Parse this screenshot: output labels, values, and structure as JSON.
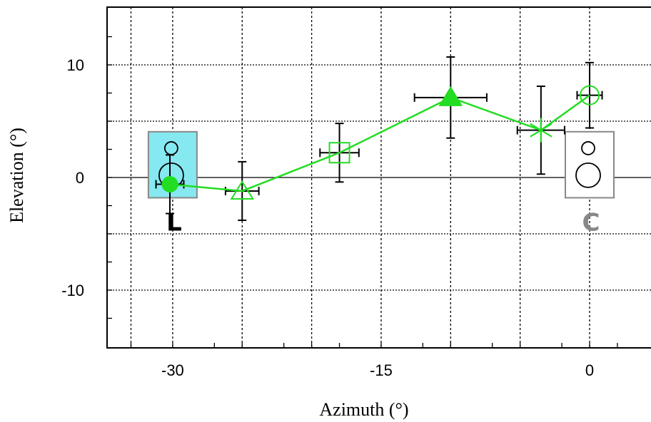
{
  "chart_data": {
    "type": "scatter",
    "xlabel": "Azimuth (°)",
    "ylabel": "Elevation (°)",
    "xlim": [
      -36,
      3
    ],
    "ylim": [
      -15,
      15
    ],
    "x_ticks": [
      -30,
      -15,
      0
    ],
    "x_tick_labels": [
      "-30",
      "-15",
      "0"
    ],
    "y_ticks": [
      10,
      0,
      -10
    ],
    "y_tick_labels": [
      "10",
      "0",
      "-10"
    ],
    "grid": true,
    "line_color": "#22dd22",
    "errorbar_color": "#000000",
    "series": [
      {
        "points": [
          {
            "x": -30.2,
            "y": -0.6,
            "x_err": 1.0,
            "y_err": 2.6,
            "marker": "filled-circle"
          },
          {
            "x": -25.0,
            "y": -1.2,
            "x_err": 1.2,
            "y_err": 2.6,
            "marker": "open-triangle"
          },
          {
            "x": -18.0,
            "y": 2.2,
            "x_err": 1.4,
            "y_err": 2.6,
            "marker": "open-square"
          },
          {
            "x": -10.0,
            "y": 7.1,
            "x_err": 2.6,
            "y_err": 3.6,
            "marker": "filled-triangle"
          },
          {
            "x": -3.5,
            "y": 4.2,
            "x_err": 1.7,
            "y_err": 3.9,
            "marker": "asterisk"
          },
          {
            "x": 0.0,
            "y": 7.3,
            "x_err": 0.9,
            "y_err": 2.9,
            "marker": "open-circle"
          }
        ]
      }
    ],
    "annotations": [
      {
        "label": "L",
        "color": "#000000",
        "box_color": "#86e8f0",
        "x": -30
      },
      {
        "label": "C",
        "color": "#888888",
        "box_color": "#ffffff",
        "x": 0
      }
    ]
  }
}
